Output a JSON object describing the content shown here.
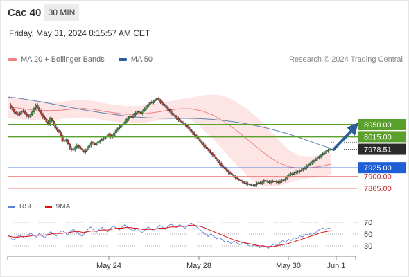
{
  "header": {
    "instrument": "Cac 40",
    "timeframe": "30 MIN",
    "timestamp": "Friday, May 31, 2024 8:15:57 AM CET"
  },
  "legend": {
    "ma20": "MA 20 + Bollinger Bands",
    "ma50": "MA 50",
    "rsi": "RSI",
    "ma9": "9MA",
    "credit": "Research © 2024 Trading Central"
  },
  "colors": {
    "ma20": "#f08080",
    "ma50": "#2c5e9a",
    "band": "#fde0e0",
    "bull": "#3a9a3a",
    "bear": "#c0392b",
    "green_level": "#5aa02c",
    "blue_level": "#1e5fd6",
    "red_level": "#f08080",
    "rsi": "#5a7fd6",
    "ma9": "#e01010"
  },
  "chart_data": {
    "type": "candlestick",
    "x_ticks": [
      "May 24",
      "May 28",
      "May 30",
      "Jun 1"
    ],
    "price_ylim": [
      7840,
      8090
    ],
    "levels": [
      {
        "label": "8050.00",
        "value": 8050,
        "style": "green"
      },
      {
        "label": "8015.00",
        "value": 8015,
        "style": "green"
      },
      {
        "label": "7978.51",
        "value": 7978.51,
        "style": "current"
      },
      {
        "label": "7925.00",
        "value": 7925,
        "style": "blue"
      },
      {
        "label": "7900.00",
        "value": 7900,
        "style": "red"
      },
      {
        "label": "7865.00",
        "value": 7865,
        "style": "red"
      }
    ],
    "ma50": [
      8130,
      8127,
      8122,
      8117,
      8111,
      8105,
      8099,
      8093,
      8088,
      8083,
      8079,
      8075,
      8072,
      8070,
      8069,
      8068,
      8068,
      8068,
      8067,
      8065,
      8062,
      8058,
      8053,
      8047,
      8040,
      8032,
      8023,
      8013,
      8002,
      7991,
      7981
    ],
    "ma20": [
      8102,
      8098,
      8094,
      8091,
      8091,
      8092,
      8095,
      8097,
      8094,
      8088,
      8084,
      8080,
      8080,
      8083,
      8087,
      8092,
      8096,
      8096,
      8090,
      8078,
      8060,
      8038,
      8013,
      7987,
      7962,
      7941,
      7928,
      7924,
      7925,
      7929,
      7936
    ],
    "bb_upper": [
      8135,
      8128,
      8122,
      8118,
      8117,
      8117,
      8120,
      8122,
      8119,
      8112,
      8108,
      8104,
      8104,
      8108,
      8113,
      8118,
      8124,
      8128,
      8135,
      8138,
      8134,
      8120,
      8100,
      8075,
      8045,
      8010,
      7978,
      7960,
      7958,
      7962,
      7970
    ],
    "bb_lower": [
      8068,
      8066,
      8064,
      8062,
      8063,
      8066,
      8069,
      8071,
      8068,
      8062,
      8058,
      8054,
      8054,
      8057,
      8062,
      8066,
      8070,
      8064,
      8040,
      8010,
      7975,
      7940,
      7908,
      7878,
      7870,
      7872,
      7880,
      7890,
      7895,
      7898,
      7905
    ],
    "closes": [
      8108,
      8100,
      8094,
      8086,
      8082,
      8079,
      8084,
      8088,
      8090,
      8082,
      8076,
      8073,
      8079,
      8087,
      8098,
      8108,
      8098,
      8090,
      8081,
      8072,
      8066,
      8058,
      8052,
      8068,
      8060,
      8050,
      8040,
      8034,
      8028,
      8018,
      8004,
      8002,
      8006,
      7994,
      7982,
      7978,
      7976,
      7984,
      7990,
      7986,
      7980,
      7976,
      7972,
      7976,
      7983,
      7990,
      7998,
      7996,
      7992,
      7996,
      8000,
      8004,
      8008,
      8010,
      8014,
      8018,
      8022,
      8014,
      8018,
      8026,
      8034,
      8040,
      8046,
      8048,
      8052,
      8058,
      8066,
      8072,
      8074,
      8071,
      8079,
      8084,
      8088,
      8086,
      8082,
      8090,
      8096,
      8103,
      8109,
      8115,
      8113,
      8119,
      8123,
      8128,
      8121,
      8114,
      8110,
      8105,
      8100,
      8094,
      8090,
      8083,
      8078,
      8074,
      8068,
      8064,
      8059,
      8056,
      8052,
      8048,
      8042,
      8036,
      8031,
      8026,
      8020,
      8014,
      8008,
      8002,
      7996,
      7990,
      7985,
      7980,
      7974,
      7968,
      7962,
      7956,
      7950,
      7944,
      7938,
      7932,
      7927,
      7922,
      7917,
      7912,
      7908,
      7904,
      7900,
      7896,
      7892,
      7889,
      7886,
      7883,
      7881,
      7879,
      7878,
      7876,
      7874,
      7874,
      7876,
      7880,
      7882,
      7880,
      7884,
      7888,
      7886,
      7884,
      7882,
      7886,
      7884,
      7886,
      7884,
      7882,
      7885,
      7888,
      7890,
      7892,
      7900,
      7904,
      7908,
      7906,
      7910,
      7912,
      7914,
      7916,
      7918,
      7922,
      7926,
      7930,
      7934,
      7938,
      7942,
      7946,
      7950,
      7954,
      7958,
      7962,
      7966,
      7970,
      7974,
      7976,
      7978.51
    ],
    "rsi_levels": [
      70,
      50,
      30
    ],
    "rsi": [
      50,
      44,
      40,
      44,
      48,
      46,
      43,
      47,
      52,
      48,
      45,
      51,
      47,
      44,
      49,
      54,
      50,
      47,
      52,
      56,
      52,
      49,
      55,
      58,
      54,
      50,
      46,
      52,
      58,
      62,
      57,
      53,
      58,
      61,
      56,
      54,
      60,
      64,
      60,
      57,
      62,
      66,
      61,
      58,
      55,
      60,
      56,
      52,
      57,
      62,
      59,
      55,
      60,
      65,
      62,
      58,
      63,
      67,
      64,
      61,
      66,
      63,
      60,
      65,
      69,
      66,
      62,
      58,
      54,
      50,
      46,
      50,
      46,
      42,
      44,
      40,
      36,
      38,
      34,
      38,
      35,
      32,
      36,
      34,
      31,
      28,
      32,
      30,
      27,
      31,
      29,
      26,
      30,
      33,
      30,
      35,
      39,
      36,
      41,
      39,
      44,
      42,
      47,
      45,
      50,
      48,
      52,
      50,
      55,
      58,
      60,
      58,
      60,
      59
    ],
    "ma9": [
      47,
      46,
      45,
      45,
      45,
      46,
      46,
      46,
      47,
      48,
      48,
      48,
      48,
      48,
      49,
      50,
      51,
      51,
      51,
      51,
      52,
      52,
      53,
      54,
      54,
      54,
      53,
      53,
      54,
      55,
      55,
      55,
      56,
      57,
      57,
      57,
      58,
      59,
      60,
      60,
      60,
      61,
      61,
      61,
      60,
      60,
      59,
      58,
      58,
      58,
      58,
      58,
      59,
      60,
      60,
      60,
      61,
      62,
      62,
      62,
      63,
      63,
      63,
      64,
      65,
      65,
      64,
      63,
      62,
      60,
      58,
      56,
      54,
      52,
      50,
      48,
      46,
      44,
      42,
      40,
      39,
      37,
      36,
      35,
      34,
      33,
      32,
      31,
      30,
      30,
      29,
      29,
      29,
      29,
      30,
      31,
      32,
      33,
      34,
      36,
      37,
      39,
      40,
      42,
      43,
      45,
      47,
      48,
      50,
      52,
      53,
      54,
      55,
      56
    ]
  }
}
